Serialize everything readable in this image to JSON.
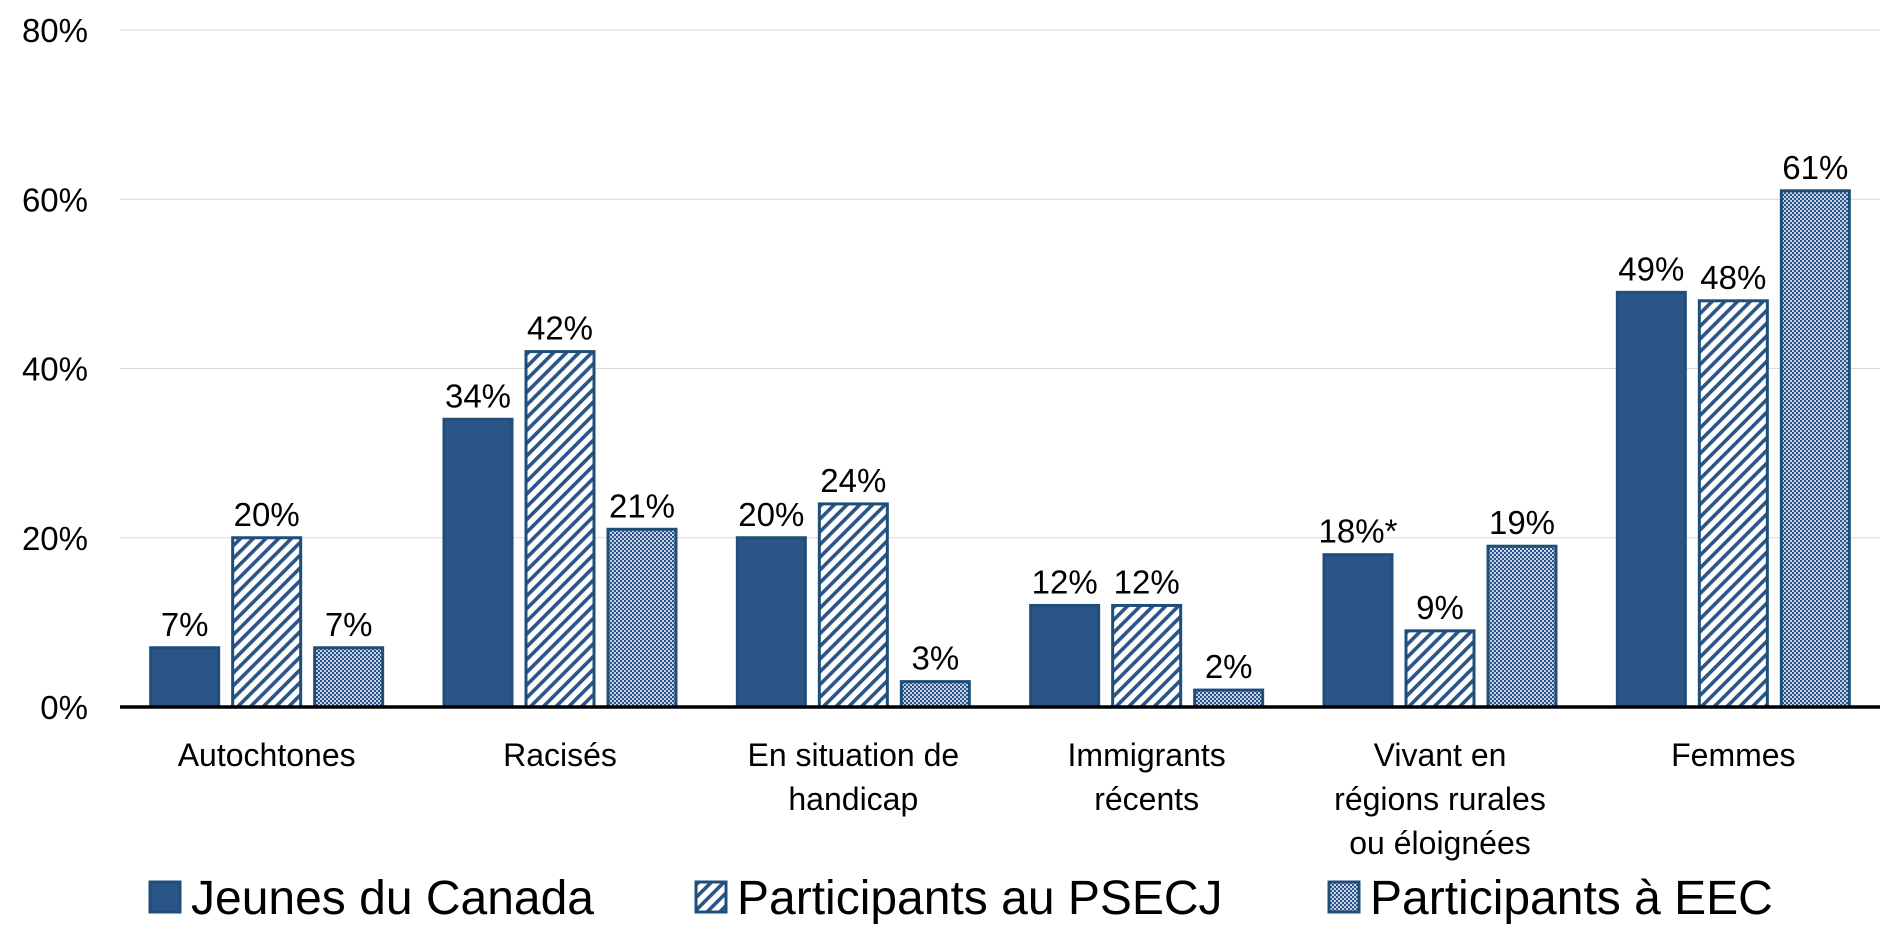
{
  "chart_data": {
    "type": "bar",
    "title": "",
    "xlabel": "",
    "ylabel": "",
    "ylim": [
      0,
      80
    ],
    "yticks": [
      0,
      20,
      40,
      60,
      80
    ],
    "ytick_labels": [
      "0%",
      "20%",
      "40%",
      "60%",
      "80%"
    ],
    "grid": true,
    "legend_position": "bottom",
    "categories": [
      [
        "Autochtones"
      ],
      [
        "Racisés"
      ],
      [
        "En situation de",
        "handicap"
      ],
      [
        "Immigrants",
        "récents"
      ],
      [
        "Vivant en",
        "régions rurales",
        "ou éloignées"
      ],
      [
        "Femmes"
      ]
    ],
    "series": [
      {
        "name": "Jeunes du Canada",
        "pattern": "solid",
        "values": [
          7,
          34,
          20,
          12,
          18,
          49
        ],
        "labels": [
          "7%",
          "34%",
          "20%",
          "12%",
          "18%*",
          "49%"
        ]
      },
      {
        "name": "Participants au PSECJ",
        "pattern": "diagonal-hatch",
        "values": [
          20,
          42,
          24,
          12,
          9,
          48
        ],
        "labels": [
          "20%",
          "42%",
          "24%",
          "12%",
          "9%",
          "48%"
        ]
      },
      {
        "name": "Participants à EEC",
        "pattern": "dots",
        "values": [
          7,
          21,
          3,
          2,
          19,
          61
        ],
        "labels": [
          "7%",
          "21%",
          "3%",
          "2%",
          "19%",
          "61%"
        ]
      }
    ]
  },
  "colors": {
    "primary": "#2b5489",
    "outline": "#1f4e79",
    "background": "#ffffff",
    "grid": "#d9d9d9",
    "text": "#000000"
  }
}
